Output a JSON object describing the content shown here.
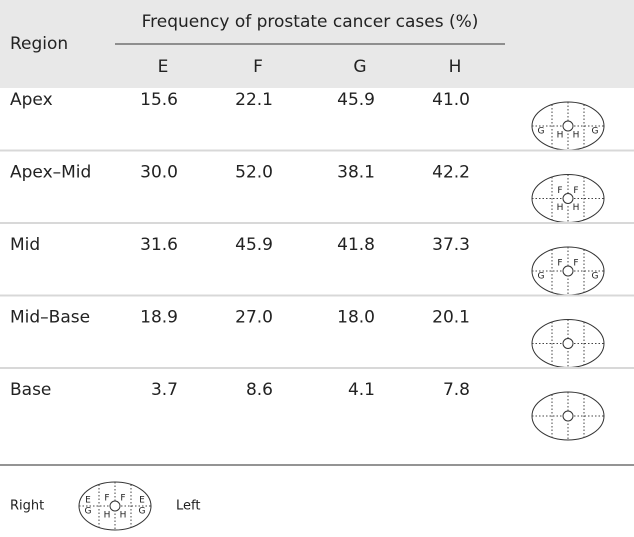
{
  "table": {
    "title": "Frequency of prostate cancer cases (%)",
    "region_header": "Region",
    "columns": [
      "E",
      "F",
      "G",
      "H"
    ],
    "rows": [
      {
        "region": "Apex",
        "values": [
          "15.6",
          "22.1",
          "45.9",
          "41.0"
        ],
        "diagram": {
          "left": "G",
          "right": "G",
          "lower_left": "H",
          "lower_right": "H"
        }
      },
      {
        "region": "Apex–Mid",
        "values": [
          "30.0",
          "52.0",
          "38.1",
          "42.2"
        ],
        "diagram": {
          "upper_left": "F",
          "upper_right": "F",
          "lower_left": "H",
          "lower_right": "H"
        }
      },
      {
        "region": "Mid",
        "values": [
          "31.6",
          "45.9",
          "41.8",
          "37.3"
        ],
        "diagram": {
          "upper_left": "F",
          "upper_right": "F",
          "left": "G",
          "right": "G"
        }
      },
      {
        "region": "Mid–Base",
        "values": [
          "18.9",
          "27.0",
          "18.0",
          "20.1"
        ],
        "diagram": {}
      },
      {
        "region": "Base",
        "values": [
          "3.7",
          "8.6",
          "4.1",
          "7.8"
        ],
        "diagram": {}
      }
    ]
  },
  "legend": {
    "right_label": "Right",
    "left_label": "Left",
    "diagram": {
      "outer_upper_left": "E",
      "outer_upper_right": "E",
      "upper_left": "F",
      "upper_right": "F",
      "left": "G",
      "right": "G",
      "lower_left": "H",
      "lower_right": "H"
    }
  }
}
